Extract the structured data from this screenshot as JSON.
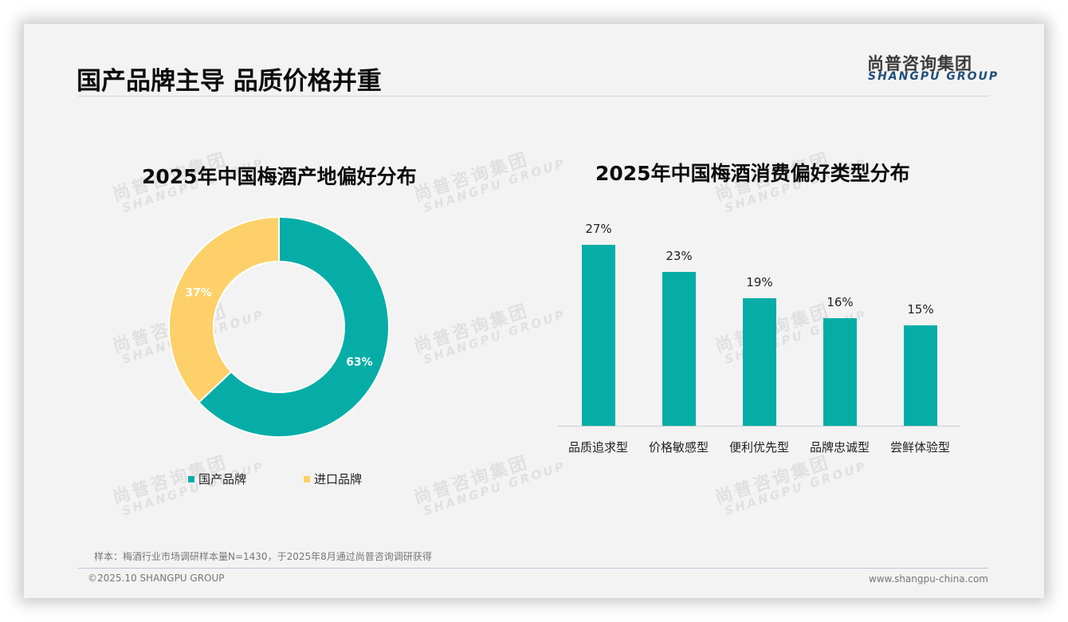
{
  "header": {
    "title": "国产品牌主导 品质价格并重",
    "logo_cn": "尚普咨询集团",
    "logo_en": "SHANGPU GROUP"
  },
  "watermark": {
    "cn": "尚普咨询集团",
    "en": "SHANGPU GROUP"
  },
  "colors": {
    "teal": "#05ADA6",
    "yellow": "#FDD06A",
    "title": "#0c0c0c",
    "logo_blue": "#1f4e79",
    "background": "#f3f3f3"
  },
  "chart_data": [
    {
      "type": "pie",
      "variant": "donut",
      "title": "2025年中国梅酒产地偏好分布",
      "categories": [
        "国产品牌",
        "进口品牌"
      ],
      "values": [
        63,
        37
      ],
      "labels": [
        "63%",
        "37%"
      ],
      "colors": [
        "#05ADA6",
        "#FDD06A"
      ],
      "legend_position": "bottom",
      "start_angle": "12 o'clock, clockwise"
    },
    {
      "type": "bar",
      "title": "2025年中国梅酒消费偏好类型分布",
      "categories": [
        "品质追求型",
        "价格敏感型",
        "便利优先型",
        "品牌忠诚型",
        "尝鲜体验型"
      ],
      "values": [
        27,
        23,
        19,
        16,
        15
      ],
      "labels": [
        "27%",
        "23%",
        "19%",
        "16%",
        "15%"
      ],
      "color": "#05ADA6",
      "xlabel": "",
      "ylabel": "",
      "ylim": [
        0,
        30
      ],
      "grid": false,
      "y_axis_visible": false
    }
  ],
  "donut": {
    "title": "2025年中国梅酒产地偏好分布",
    "legend": [
      {
        "label": "国产品牌",
        "color": "#05ADA6"
      },
      {
        "label": "进口品牌",
        "color": "#FDD06A"
      }
    ],
    "slice_labels": [
      "63%",
      "37%"
    ]
  },
  "bar": {
    "title": "2025年中国梅酒消费偏好类型分布",
    "items": [
      {
        "category": "品质追求型",
        "value": 27,
        "label": "27%"
      },
      {
        "category": "价格敏感型",
        "value": 23,
        "label": "23%"
      },
      {
        "category": "便利优先型",
        "value": 19,
        "label": "19%"
      },
      {
        "category": "品牌忠诚型",
        "value": 16,
        "label": "16%"
      },
      {
        "category": "尝鲜体验型",
        "value": 15,
        "label": "15%"
      }
    ]
  },
  "footer": {
    "source": "样本：梅酒行业市场调研样本量N=1430，于2025年8月通过尚普咨询调研获得",
    "copyright": "©2025.10 SHANGPU GROUP",
    "website": "www.shangpu-china.com"
  }
}
